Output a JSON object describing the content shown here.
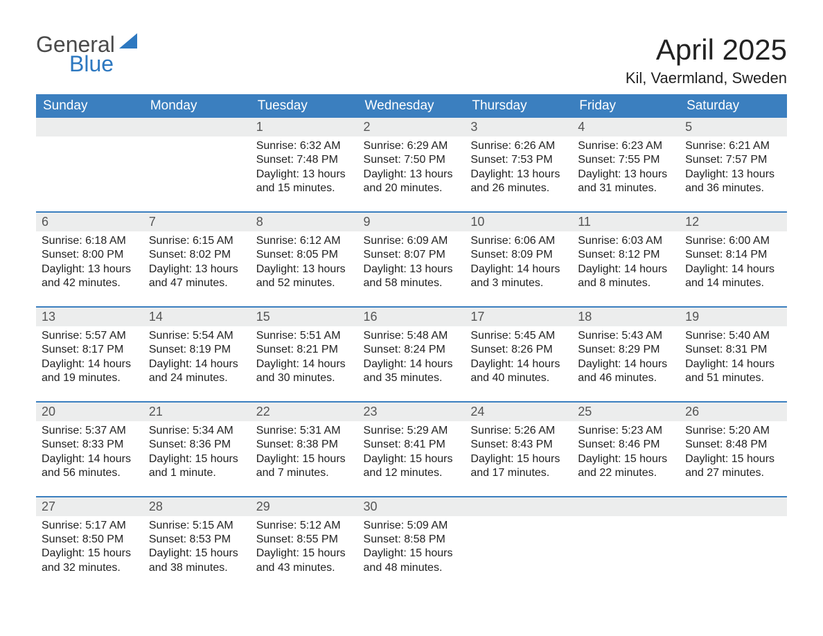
{
  "brand": {
    "word1": "General",
    "word2": "Blue",
    "triangle_color": "#2d78c0"
  },
  "title": "April 2025",
  "location": "Kil, Vaermland, Sweden",
  "colors": {
    "header_bg": "#3b7fbf",
    "header_text": "#ffffff",
    "daynum_bg": "#eceded",
    "rule": "#3b7fbf",
    "text": "#222222",
    "background": "#ffffff"
  },
  "typography": {
    "title_fontsize": 42,
    "location_fontsize": 22,
    "header_fontsize": 19,
    "daynum_fontsize": 18,
    "body_fontsize": 16
  },
  "day_headers": [
    "Sunday",
    "Monday",
    "Tuesday",
    "Wednesday",
    "Thursday",
    "Friday",
    "Saturday"
  ],
  "weeks": [
    [
      null,
      null,
      {
        "n": "1",
        "sunrise": "6:32 AM",
        "sunset": "7:48 PM",
        "daylight": "13 hours and 15 minutes."
      },
      {
        "n": "2",
        "sunrise": "6:29 AM",
        "sunset": "7:50 PM",
        "daylight": "13 hours and 20 minutes."
      },
      {
        "n": "3",
        "sunrise": "6:26 AM",
        "sunset": "7:53 PM",
        "daylight": "13 hours and 26 minutes."
      },
      {
        "n": "4",
        "sunrise": "6:23 AM",
        "sunset": "7:55 PM",
        "daylight": "13 hours and 31 minutes."
      },
      {
        "n": "5",
        "sunrise": "6:21 AM",
        "sunset": "7:57 PM",
        "daylight": "13 hours and 36 minutes."
      }
    ],
    [
      {
        "n": "6",
        "sunrise": "6:18 AM",
        "sunset": "8:00 PM",
        "daylight": "13 hours and 42 minutes."
      },
      {
        "n": "7",
        "sunrise": "6:15 AM",
        "sunset": "8:02 PM",
        "daylight": "13 hours and 47 minutes."
      },
      {
        "n": "8",
        "sunrise": "6:12 AM",
        "sunset": "8:05 PM",
        "daylight": "13 hours and 52 minutes."
      },
      {
        "n": "9",
        "sunrise": "6:09 AM",
        "sunset": "8:07 PM",
        "daylight": "13 hours and 58 minutes."
      },
      {
        "n": "10",
        "sunrise": "6:06 AM",
        "sunset": "8:09 PM",
        "daylight": "14 hours and 3 minutes."
      },
      {
        "n": "11",
        "sunrise": "6:03 AM",
        "sunset": "8:12 PM",
        "daylight": "14 hours and 8 minutes."
      },
      {
        "n": "12",
        "sunrise": "6:00 AM",
        "sunset": "8:14 PM",
        "daylight": "14 hours and 14 minutes."
      }
    ],
    [
      {
        "n": "13",
        "sunrise": "5:57 AM",
        "sunset": "8:17 PM",
        "daylight": "14 hours and 19 minutes."
      },
      {
        "n": "14",
        "sunrise": "5:54 AM",
        "sunset": "8:19 PM",
        "daylight": "14 hours and 24 minutes."
      },
      {
        "n": "15",
        "sunrise": "5:51 AM",
        "sunset": "8:21 PM",
        "daylight": "14 hours and 30 minutes."
      },
      {
        "n": "16",
        "sunrise": "5:48 AM",
        "sunset": "8:24 PM",
        "daylight": "14 hours and 35 minutes."
      },
      {
        "n": "17",
        "sunrise": "5:45 AM",
        "sunset": "8:26 PM",
        "daylight": "14 hours and 40 minutes."
      },
      {
        "n": "18",
        "sunrise": "5:43 AM",
        "sunset": "8:29 PM",
        "daylight": "14 hours and 46 minutes."
      },
      {
        "n": "19",
        "sunrise": "5:40 AM",
        "sunset": "8:31 PM",
        "daylight": "14 hours and 51 minutes."
      }
    ],
    [
      {
        "n": "20",
        "sunrise": "5:37 AM",
        "sunset": "8:33 PM",
        "daylight": "14 hours and 56 minutes."
      },
      {
        "n": "21",
        "sunrise": "5:34 AM",
        "sunset": "8:36 PM",
        "daylight": "15 hours and 1 minute."
      },
      {
        "n": "22",
        "sunrise": "5:31 AM",
        "sunset": "8:38 PM",
        "daylight": "15 hours and 7 minutes."
      },
      {
        "n": "23",
        "sunrise": "5:29 AM",
        "sunset": "8:41 PM",
        "daylight": "15 hours and 12 minutes."
      },
      {
        "n": "24",
        "sunrise": "5:26 AM",
        "sunset": "8:43 PM",
        "daylight": "15 hours and 17 minutes."
      },
      {
        "n": "25",
        "sunrise": "5:23 AM",
        "sunset": "8:46 PM",
        "daylight": "15 hours and 22 minutes."
      },
      {
        "n": "26",
        "sunrise": "5:20 AM",
        "sunset": "8:48 PM",
        "daylight": "15 hours and 27 minutes."
      }
    ],
    [
      {
        "n": "27",
        "sunrise": "5:17 AM",
        "sunset": "8:50 PM",
        "daylight": "15 hours and 32 minutes."
      },
      {
        "n": "28",
        "sunrise": "5:15 AM",
        "sunset": "8:53 PM",
        "daylight": "15 hours and 38 minutes."
      },
      {
        "n": "29",
        "sunrise": "5:12 AM",
        "sunset": "8:55 PM",
        "daylight": "15 hours and 43 minutes."
      },
      {
        "n": "30",
        "sunrise": "5:09 AM",
        "sunset": "8:58 PM",
        "daylight": "15 hours and 48 minutes."
      },
      null,
      null,
      null
    ]
  ],
  "labels": {
    "sunrise": "Sunrise: ",
    "sunset": "Sunset: ",
    "daylight": "Daylight: "
  }
}
